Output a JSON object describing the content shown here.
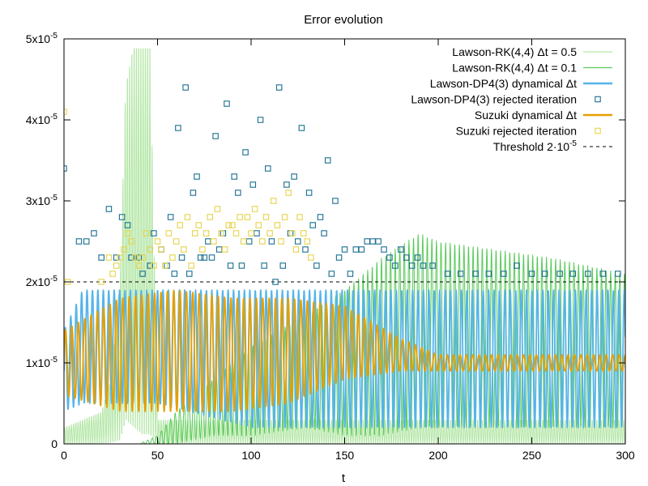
{
  "chart_data": {
    "type": "line",
    "title": "Error evolution",
    "xlabel": "t",
    "ylabel": "",
    "xlim": [
      0,
      300
    ],
    "ylim": [
      0,
      5e-05
    ],
    "x_ticks": [
      0,
      50,
      100,
      150,
      200,
      250,
      300
    ],
    "x_tick_labels": [
      "0",
      "50",
      "100",
      "150",
      "200",
      "250",
      "300"
    ],
    "y_ticks": [
      0,
      1e-05,
      2e-05,
      3e-05,
      4e-05,
      5e-05
    ],
    "y_tick_labels": [
      {
        "mant": "0",
        "exp": ""
      },
      {
        "mant": "1x10",
        "exp": "-5"
      },
      {
        "mant": "2x10",
        "exp": "-5"
      },
      {
        "mant": "3x10",
        "exp": "-5"
      },
      {
        "mant": "4x10",
        "exp": "-5"
      },
      {
        "mant": "5x10",
        "exp": "-5"
      }
    ],
    "grid": false,
    "legend_position": "top-right",
    "series": [
      {
        "name": "Lawson-RK(4,4) Δt = 0.5",
        "kind": "line",
        "color": "#b3e6a6",
        "envelope": {
          "t": [
            0,
            20,
            25,
            30,
            33,
            37,
            42,
            46,
            50,
            60,
            100,
            150,
            200,
            250,
            300
          ],
          "upper": [
            2e-06,
            4e-06,
            8e-06,
            2.1e-05,
            4.5e-05,
            5e-05,
            5e-05,
            5e-05,
            3e-06,
            3e-06,
            3e-06,
            3e-06,
            3e-06,
            3e-06,
            3e-06
          ],
          "lower": [
            0,
            0,
            0,
            0,
            2e-06,
            1e-06,
            0,
            0,
            0,
            0,
            0,
            0,
            0,
            0,
            0
          ]
        }
      },
      {
        "name": "Lawson-RK(4,4) Δt = 0.1",
        "kind": "line",
        "color": "#5ac95a",
        "envelope": {
          "t": [
            0,
            40,
            50,
            60,
            80,
            100,
            130,
            150,
            170,
            190,
            200,
            230,
            260,
            300
          ],
          "upper": [
            0,
            0,
            1e-06,
            4e-06,
            8e-06,
            1.2e-05,
            1.6e-05,
            1.9e-05,
            2.3e-05,
            2.6e-05,
            2.5e-05,
            2.4e-05,
            2.3e-05,
            2.1e-05
          ],
          "lower": [
            0,
            0,
            0,
            0,
            1e-06,
            1e-06,
            2e-06,
            1e-06,
            1e-06,
            2e-06,
            2e-06,
            2e-06,
            2e-06,
            2e-06
          ]
        }
      },
      {
        "name": "Lawson-DP4(3) dynamical Δt",
        "kind": "line",
        "color": "#56b4e9",
        "envelope": {
          "t": [
            0,
            10,
            50,
            100,
            150,
            200,
            250,
            300
          ],
          "upper": [
            1.4e-05,
            1.9e-05,
            1.9e-05,
            1.9e-05,
            1.9e-05,
            1.9e-05,
            1.9e-05,
            1.9e-05
          ],
          "lower": [
            4e-06,
            5e-06,
            5e-06,
            2e-06,
            2e-06,
            2e-06,
            2e-06,
            2e-06
          ]
        }
      },
      {
        "name": "Lawson-DP4(3) rejected iteration",
        "kind": "markers",
        "marker": "square-open",
        "color": "#1a6e91",
        "points": [
          [
            0,
            3.4e-05
          ],
          [
            8,
            2.5e-05
          ],
          [
            12,
            2.5e-05
          ],
          [
            16,
            2.6e-05
          ],
          [
            20,
            2.3e-05
          ],
          [
            24,
            2.9e-05
          ],
          [
            28,
            2.3e-05
          ],
          [
            31,
            2.8e-05
          ],
          [
            34,
            2.7e-05
          ],
          [
            36,
            2.3e-05
          ],
          [
            40,
            2.3e-05
          ],
          [
            42,
            2.1e-05
          ],
          [
            46,
            2.2e-05
          ],
          [
            48,
            2.6e-05
          ],
          [
            52,
            2.4e-05
          ],
          [
            55,
            2.2e-05
          ],
          [
            57,
            2.8e-05
          ],
          [
            59,
            2.1e-05
          ],
          [
            61,
            3.9e-05
          ],
          [
            63,
            2.3e-05
          ],
          [
            65,
            4.4e-05
          ],
          [
            67,
            2.1e-05
          ],
          [
            69,
            3.1e-05
          ],
          [
            71,
            3.3e-05
          ],
          [
            73,
            2.3e-05
          ],
          [
            75,
            2.3e-05
          ],
          [
            77,
            2.5e-05
          ],
          [
            79,
            2.3e-05
          ],
          [
            81,
            3.8e-05
          ],
          [
            83,
            2.4e-05
          ],
          [
            85,
            2.6e-05
          ],
          [
            87,
            4.2e-05
          ],
          [
            89,
            2.2e-05
          ],
          [
            91,
            3.3e-05
          ],
          [
            93,
            3.1e-05
          ],
          [
            95,
            2.2e-05
          ],
          [
            97,
            3.6e-05
          ],
          [
            99,
            2.5e-05
          ],
          [
            101,
            3.2e-05
          ],
          [
            103,
            2.6e-05
          ],
          [
            105,
            4e-05
          ],
          [
            107,
            2.2e-05
          ],
          [
            109,
            3.4e-05
          ],
          [
            111,
            2.5e-05
          ],
          [
            113,
            2e-05
          ],
          [
            115,
            4.4e-05
          ],
          [
            117,
            2.2e-05
          ],
          [
            119,
            3.2e-05
          ],
          [
            121,
            2.6e-05
          ],
          [
            123,
            3.3e-05
          ],
          [
            125,
            2.5e-05
          ],
          [
            127,
            3.9e-05
          ],
          [
            129,
            2.4e-05
          ],
          [
            131,
            3.1e-05
          ],
          [
            133,
            2.7e-05
          ],
          [
            135,
            2.2e-05
          ],
          [
            137,
            2.8e-05
          ],
          [
            139,
            2.6e-05
          ],
          [
            141,
            3.5e-05
          ],
          [
            143,
            2.1e-05
          ],
          [
            145,
            3e-05
          ],
          [
            147,
            2.3e-05
          ],
          [
            150,
            2.4e-05
          ],
          [
            153,
            2.1e-05
          ],
          [
            156,
            2.4e-05
          ],
          [
            159,
            2.4e-05
          ],
          [
            162,
            2.5e-05
          ],
          [
            165,
            2.5e-05
          ],
          [
            168,
            2.5e-05
          ],
          [
            171,
            2.4e-05
          ],
          [
            174,
            2.3e-05
          ],
          [
            177,
            2.2e-05
          ],
          [
            180,
            2.4e-05
          ],
          [
            183,
            2.3e-05
          ],
          [
            186,
            2.2e-05
          ],
          [
            189,
            2.3e-05
          ],
          [
            192,
            2.2e-05
          ],
          [
            197,
            2.2e-05
          ],
          [
            205,
            2.1e-05
          ],
          [
            212,
            2.1e-05
          ],
          [
            220,
            2.1e-05
          ],
          [
            227,
            2.1e-05
          ],
          [
            235,
            2.1e-05
          ],
          [
            242,
            2.2e-05
          ],
          [
            250,
            2.1e-05
          ],
          [
            257,
            2.1e-05
          ],
          [
            265,
            2.1e-05
          ],
          [
            272,
            2.1e-05
          ],
          [
            280,
            2.1e-05
          ],
          [
            288,
            2.1e-05
          ],
          [
            296,
            2.1e-05
          ]
        ]
      },
      {
        "name": "Suzuki dynamical Δt",
        "kind": "line",
        "color": "#e69f00",
        "envelope": {
          "t": [
            0,
            30,
            60,
            90,
            120,
            150,
            180,
            200,
            250,
            300
          ],
          "upper": [
            1.4e-05,
            1.8e-05,
            1.9e-05,
            1.8e-05,
            1.8e-05,
            1.7e-05,
            1.3e-05,
            1.1e-05,
            1.1e-05,
            1.1e-05
          ],
          "lower": [
            6e-06,
            4e-06,
            4e-06,
            4e-06,
            5e-06,
            8e-06,
            9e-06,
            9e-06,
            9e-06,
            9e-06
          ]
        }
      },
      {
        "name": "Suzuki rejected iteration",
        "kind": "markers",
        "marker": "square-open",
        "color": "#e6d34a",
        "points": [
          [
            0,
            4.1e-05
          ],
          [
            2,
            2e-05
          ],
          [
            20,
            2e-05
          ],
          [
            24,
            2.3e-05
          ],
          [
            26,
            2.1e-05
          ],
          [
            28,
            2.2e-05
          ],
          [
            30,
            2.3e-05
          ],
          [
            32,
            2.4e-05
          ],
          [
            34,
            2.6e-05
          ],
          [
            36,
            2.5e-05
          ],
          [
            38,
            2.3e-05
          ],
          [
            40,
            2.2e-05
          ],
          [
            42,
            2.3e-05
          ],
          [
            44,
            2.6e-05
          ],
          [
            46,
            2.4e-05
          ],
          [
            48,
            2.2e-05
          ],
          [
            50,
            2.5e-05
          ],
          [
            52,
            2.4e-05
          ],
          [
            54,
            2.2e-05
          ],
          [
            56,
            2.6e-05
          ],
          [
            58,
            2.3e-05
          ],
          [
            60,
            2.5e-05
          ],
          [
            62,
            2.7e-05
          ],
          [
            64,
            2.4e-05
          ],
          [
            66,
            2.8e-05
          ],
          [
            68,
            2.2e-05
          ],
          [
            70,
            2.6e-05
          ],
          [
            72,
            2.7e-05
          ],
          [
            74,
            2.4e-05
          ],
          [
            76,
            2.6e-05
          ],
          [
            78,
            2.8e-05
          ],
          [
            80,
            2.5e-05
          ],
          [
            82,
            2.9e-05
          ],
          [
            84,
            2.6e-05
          ],
          [
            86,
            2.4e-05
          ],
          [
            88,
            2.7e-05
          ],
          [
            90,
            2.7e-05
          ],
          [
            92,
            2.6e-05
          ],
          [
            94,
            2.8e-05
          ],
          [
            96,
            2.5e-05
          ],
          [
            98,
            2.8e-05
          ],
          [
            100,
            2.6e-05
          ],
          [
            102,
            2.9e-05
          ],
          [
            104,
            2.7e-05
          ],
          [
            106,
            2.5e-05
          ],
          [
            108,
            2.8e-05
          ],
          [
            110,
            2.6e-05
          ],
          [
            112,
            3e-05
          ],
          [
            114,
            2.7e-05
          ],
          [
            116,
            2.5e-05
          ],
          [
            118,
            2.8e-05
          ],
          [
            120,
            3.1e-05
          ],
          [
            122,
            2.6e-05
          ],
          [
            124,
            2.4e-05
          ],
          [
            126,
            2.8e-05
          ],
          [
            128,
            2.6e-05
          ],
          [
            130,
            2.5e-05
          ],
          [
            132,
            2.3e-05
          ]
        ]
      }
    ],
    "reference_lines": [
      {
        "name": "Threshold 2·10⁻⁵",
        "kind": "hline",
        "y": 2e-05,
        "color": "#000000",
        "dash": "dashed"
      }
    ],
    "legend": [
      {
        "label": "Lawson-RK(4,4) Δt = 0.5",
        "style": "line",
        "color": "#b3e6a6"
      },
      {
        "label": "Lawson-RK(4,4) Δt = 0.1",
        "style": "line",
        "color": "#5ac95a"
      },
      {
        "label": "Lawson-DP4(3) dynamical Δt",
        "style": "thick-line",
        "color": "#56b4e9"
      },
      {
        "label": "Lawson-DP4(3) rejected iteration",
        "style": "square",
        "color": "#1a6e91"
      },
      {
        "label": "Suzuki dynamical Δt",
        "style": "thick-line",
        "color": "#e69f00"
      },
      {
        "label": "Suzuki rejected iteration",
        "style": "square",
        "color": "#e6d34a"
      },
      {
        "label": "Threshold 2·10⁻⁵",
        "style": "dashed",
        "color": "#000000",
        "label_main": "Threshold 2·10",
        "label_exp": "-5"
      }
    ]
  }
}
